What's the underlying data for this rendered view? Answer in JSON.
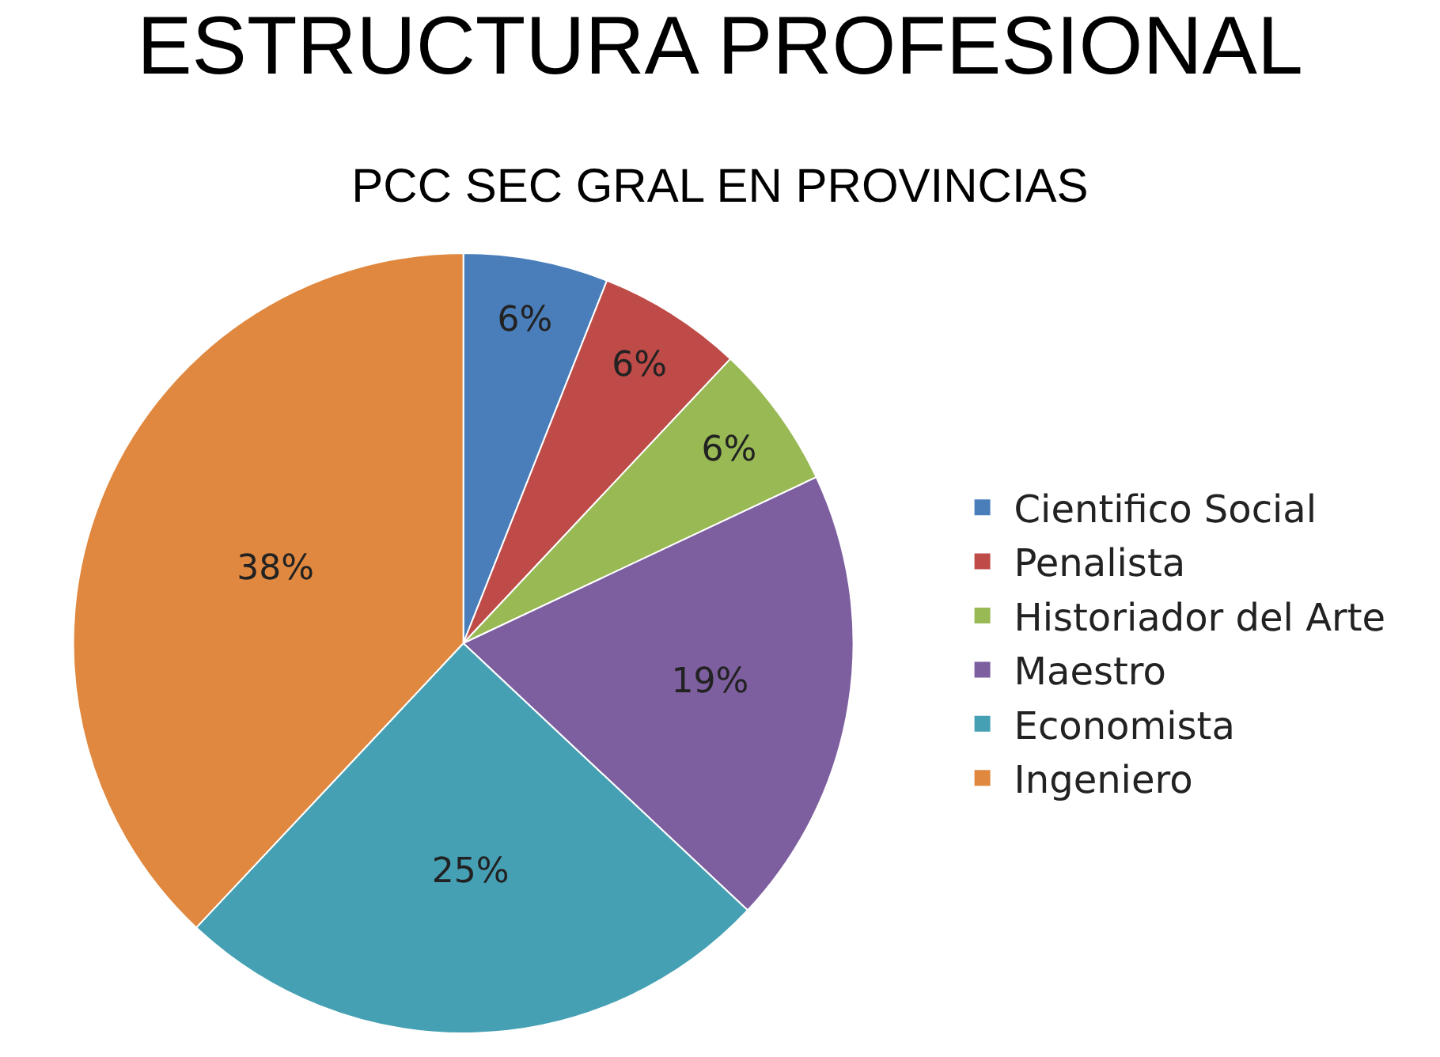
{
  "chart_data": {
    "type": "pie",
    "title": "ESTRUCTURA PROFESIONAL",
    "subtitle": "PCC SEC GRAL EN PROVINCIAS",
    "categories": [
      "Cientifico Social",
      "Penalista",
      "Historiador del Arte",
      "Maestro",
      "Economista",
      "Ingeniero"
    ],
    "values": [
      6,
      6,
      6,
      19,
      25,
      38
    ],
    "value_labels": [
      "6%",
      "6%",
      "6%",
      "19%",
      "25%",
      "38%"
    ],
    "colors": [
      "#4a7ebb",
      "#be4b48",
      "#98b954",
      "#7d5fa0",
      "#46a0b4",
      "#e0883f"
    ],
    "legend": "right"
  }
}
